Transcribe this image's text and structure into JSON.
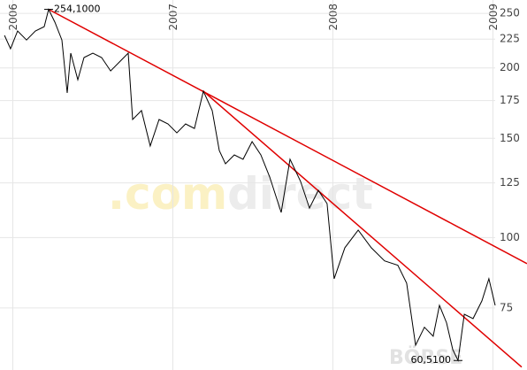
{
  "chart_data": {
    "type": "line",
    "watermark": [
      ".com",
      "direct"
    ],
    "footer_mark": "BÖRSE",
    "x": [
      2005.948,
      2005.986,
      2006.03,
      2006.086,
      2006.141,
      2006.196,
      2006.224,
      2006.263,
      2006.307,
      2006.34,
      2006.362,
      2006.406,
      2006.445,
      2006.5,
      2006.555,
      2006.611,
      2006.666,
      2006.721,
      2006.749,
      2006.804,
      2006.859,
      2006.914,
      2006.97,
      2007.025,
      2007.08,
      2007.135,
      2007.191,
      2007.246,
      2007.29,
      2007.329,
      2007.384,
      2007.439,
      2007.495,
      2007.55,
      2007.605,
      2007.677,
      2007.732,
      2007.798,
      2007.854,
      2007.909,
      2007.964,
      2008.008,
      2008.075,
      2008.158,
      2008.24,
      2008.323,
      2008.406,
      2008.461,
      2008.517,
      2008.572,
      2008.627,
      2008.666,
      2008.71,
      2008.749,
      2008.782,
      2008.821,
      2008.876,
      2008.931,
      2008.975,
      2009.014
    ],
    "series": [
      {
        "color": "#000000",
        "values": [
          228.4,
          216.3,
          232.6,
          224.2,
          232.6,
          236.8,
          254.1,
          241.1,
          224.2,
          180.6,
          212.5,
          190.6,
          208.7,
          212.5,
          208.7,
          197.6,
          204.9,
          212.5,
          162.0,
          168.0,
          145.4,
          162.0,
          159.1,
          153.4,
          159.1,
          156.2,
          181.9,
          168.0,
          142.7,
          135.2,
          140.2,
          137.7,
          148.0,
          140.2,
          128.1,
          110.8,
          137.7,
          125.8,
          112.8,
          121.3,
          114.9,
          84.5,
          95.9,
          103.1,
          95.9,
          90.9,
          89.3,
          83.0,
          64.4,
          69.3,
          66.8,
          75.8,
          70.6,
          63.3,
          60.51,
          73.1,
          71.8,
          77.2,
          84.5,
          75.8
        ]
      }
    ],
    "trendlines": [
      {
        "color": "#e00000",
        "x": [
          2006.224,
          2009.213
        ],
        "values": [
          254.1,
          89.9
        ]
      },
      {
        "color": "#e00000",
        "x": [
          2007.191,
          2009.18
        ],
        "values": [
          181.9,
          58.9
        ]
      }
    ],
    "annotations": [
      {
        "x": 2006.224,
        "value": 254.1,
        "label": "254,1000"
      },
      {
        "x": 2008.782,
        "value": 60.51,
        "label": "60,5100"
      }
    ],
    "xlim": [
      2005.92,
      2009.213
    ],
    "xticks": [
      2006,
      2007,
      2008,
      2009
    ],
    "ylim": [
      58.2,
      264
    ],
    "yticks": [
      75,
      100,
      125,
      150,
      175,
      200,
      225,
      250
    ],
    "log_y": true,
    "grid": true
  }
}
